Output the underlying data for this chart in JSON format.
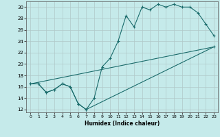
{
  "title": "",
  "xlabel": "Humidex (Indice chaleur)",
  "bg_color": "#c5eaea",
  "grid_color": "#b0c8c8",
  "line_color": "#1a6b6b",
  "xlim": [
    -0.5,
    23.5
  ],
  "ylim": [
    11.5,
    31.0
  ],
  "xticks": [
    0,
    1,
    2,
    3,
    4,
    5,
    6,
    7,
    8,
    9,
    10,
    11,
    12,
    13,
    14,
    15,
    16,
    17,
    18,
    19,
    20,
    21,
    22,
    23
  ],
  "yticks": [
    12,
    14,
    16,
    18,
    20,
    22,
    24,
    26,
    28,
    30
  ],
  "line1_x": [
    0,
    1,
    2,
    3,
    4,
    5,
    6,
    7,
    8,
    9,
    10,
    11,
    12,
    13,
    14,
    15,
    16,
    17,
    18,
    19,
    20,
    21,
    22,
    23
  ],
  "line1_y": [
    16.5,
    16.5,
    15.0,
    15.5,
    16.5,
    16.0,
    13.0,
    12.0,
    14.0,
    19.5,
    21.0,
    24.0,
    28.5,
    26.5,
    30.0,
    29.5,
    30.5,
    30.0,
    30.5,
    30.0,
    30.0,
    29.0,
    27.0,
    25.0
  ],
  "line2_x": [
    0,
    1,
    2,
    3,
    4,
    5,
    6,
    7,
    23
  ],
  "line2_y": [
    16.5,
    16.5,
    15.0,
    15.5,
    16.5,
    16.0,
    13.0,
    12.0,
    23.0
  ],
  "line3_x": [
    0,
    23
  ],
  "line3_y": [
    16.5,
    23.0
  ]
}
